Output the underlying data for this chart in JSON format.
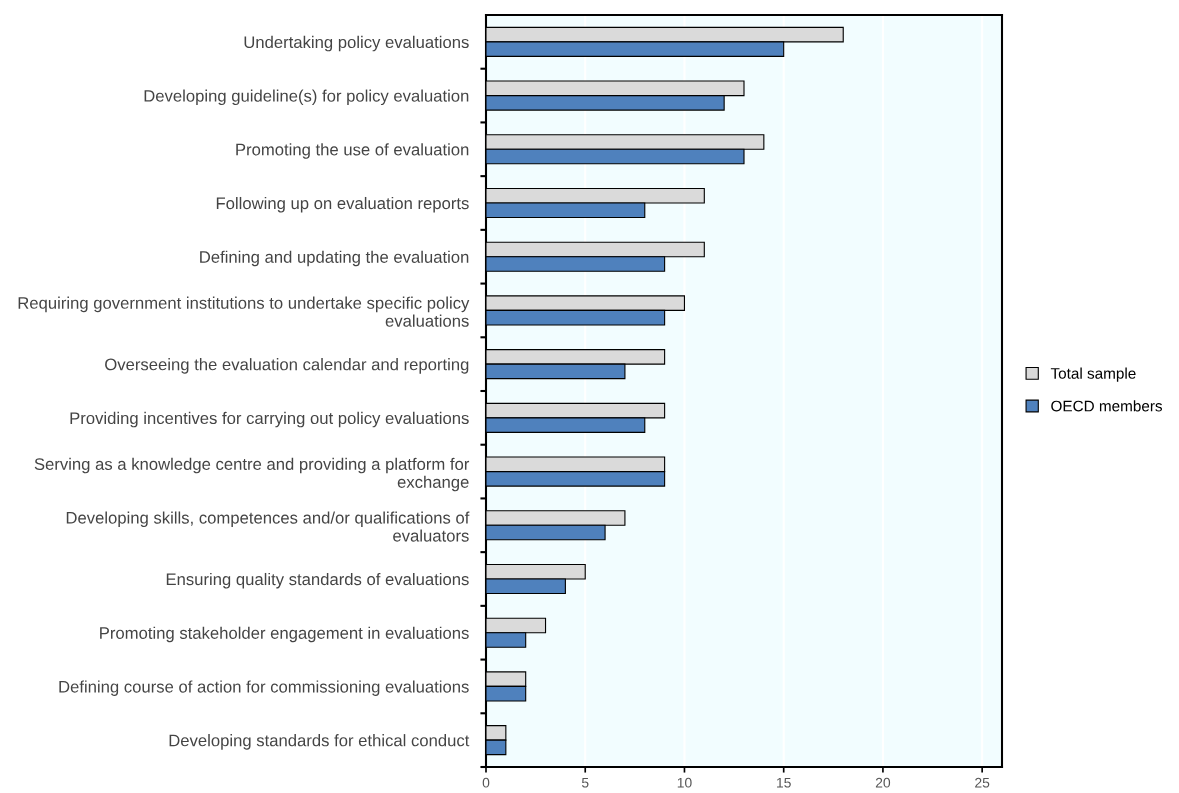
{
  "chart_data": {
    "type": "bar",
    "orientation": "horizontal",
    "categories": [
      "Undertaking policy evaluations",
      "Developing guideline(s) for policy evaluation",
      "Promoting the use of evaluation",
      "Following up on evaluation reports",
      "Defining and updating the evaluation",
      "Requiring government institutions to undertake specific policy evaluations",
      "Overseeing the evaluation calendar and reporting",
      "Providing incentives for carrying out policy evaluations",
      "Serving as a knowledge centre and providing a platform for exchange",
      "Developing skills, competences and/or qualifications of evaluators",
      "Ensuring quality standards of evaluations",
      "Promoting stakeholder engagement in evaluations",
      "Defining course of action for commissioning evaluations",
      "Developing standards for ethical conduct"
    ],
    "series": [
      {
        "name": "Total sample",
        "color": "#dadada",
        "values": [
          18,
          13,
          14,
          11,
          11,
          10,
          9,
          9,
          9,
          7,
          5,
          3,
          2,
          1
        ]
      },
      {
        "name": "OECD members",
        "color": "#4f81bd",
        "values": [
          15,
          12,
          13,
          8,
          9,
          9,
          7,
          8,
          9,
          6,
          4,
          2,
          2,
          1
        ]
      }
    ],
    "xlim": [
      0,
      26
    ],
    "xticks": [
      0,
      5,
      10,
      15,
      20,
      25
    ],
    "grid": "x",
    "legend": "right"
  }
}
